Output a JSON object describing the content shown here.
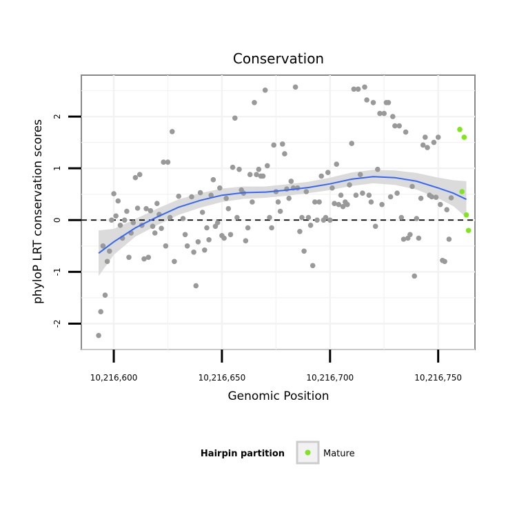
{
  "chart_data": {
    "type": "scatter",
    "title": "Conservation",
    "xlabel": "Genomic Position",
    "ylabel": "phyloP LRT conservation scores",
    "xlim": [
      10216585,
      10216767
    ],
    "ylim": [
      -2.5,
      2.8
    ],
    "x_ticks": [
      {
        "value": 10216600,
        "label": "10,216,600"
      },
      {
        "value": 10216650,
        "label": "10,216,650"
      },
      {
        "value": 10216700,
        "label": "10,216,700"
      },
      {
        "value": 10216750,
        "label": "10,216,750"
      }
    ],
    "y_ticks": [
      {
        "value": -2,
        "label": "-2"
      },
      {
        "value": -1,
        "label": "-1"
      },
      {
        "value": 0,
        "label": "0"
      },
      {
        "value": 1,
        "label": "1"
      },
      {
        "value": 2,
        "label": "2"
      }
    ],
    "grid": true,
    "reference_line": {
      "y": 0,
      "style": "dashed",
      "color": "#000000"
    },
    "colors": {
      "background_points": "#999999",
      "mature_points": "#7fe61a",
      "smooth_line": "#3366ff",
      "confidence_band": "#d9d9d9",
      "panel_border": "#888888",
      "grid": "#f2f2f2"
    },
    "legend": {
      "title": "Hairpin partition",
      "position": "bottom",
      "entries": [
        {
          "label": "Mature",
          "color": "#7fe61a"
        }
      ]
    },
    "series": [
      {
        "points": [
          [
            10216593,
            -2.23
          ],
          [
            10216594,
            -1.77
          ],
          [
            10216595,
            -0.5
          ],
          [
            10216596,
            -1.45
          ],
          [
            10216597,
            -0.8
          ],
          [
            10216598,
            -0.6
          ],
          [
            10216599,
            0.0
          ],
          [
            10216600,
            0.51
          ],
          [
            10216601,
            0.08
          ],
          [
            10216602,
            0.37
          ],
          [
            10216603,
            -0.1
          ],
          [
            10216604,
            -0.35
          ],
          [
            10216605,
            0.0
          ],
          [
            10216606,
            0.17
          ],
          [
            10216607,
            -0.72
          ],
          [
            10216608,
            -0.25
          ],
          [
            10216609,
            -0.05
          ],
          [
            10216610,
            0.82
          ],
          [
            10216611,
            0.23
          ],
          [
            10216612,
            0.88
          ],
          [
            10216613,
            -0.1
          ],
          [
            10216614,
            -0.75
          ],
          [
            10216615,
            0.22
          ],
          [
            10216616,
            -0.72
          ],
          [
            10216617,
            0.18
          ],
          [
            10216618,
            -0.12
          ],
          [
            10216619,
            -0.25
          ],
          [
            10216620,
            0.32
          ],
          [
            10216621,
            0.11
          ],
          [
            10216622,
            -0.16
          ],
          [
            10216623,
            1.12
          ],
          [
            10216624,
            -0.5
          ],
          [
            10216625,
            1.12
          ],
          [
            10216626,
            0.05
          ],
          [
            10216627,
            1.71
          ],
          [
            10216628,
            -0.8
          ],
          [
            10216630,
            0.46
          ],
          [
            10216632,
            0.03
          ],
          [
            10216633,
            -0.28
          ],
          [
            10216634,
            -0.5
          ],
          [
            10216636,
            0.45
          ],
          [
            10216637,
            -0.62
          ],
          [
            10216638,
            -1.27
          ],
          [
            10216639,
            -0.42
          ],
          [
            10216640,
            0.53
          ],
          [
            10216641,
            0.15
          ],
          [
            10216642,
            -0.58
          ],
          [
            10216643,
            -0.15
          ],
          [
            10216644,
            -0.38
          ],
          [
            10216645,
            0.48
          ],
          [
            10216646,
            0.78
          ],
          [
            10216647,
            -0.12
          ],
          [
            10216648,
            -0.05
          ],
          [
            10216649,
            0.62
          ],
          [
            10216650,
            -0.3
          ],
          [
            10216651,
            -0.35
          ],
          [
            10216652,
            0.42
          ],
          [
            10216653,
            0.22
          ],
          [
            10216654,
            -0.28
          ],
          [
            10216655,
            1.02
          ],
          [
            10216656,
            1.97
          ],
          [
            10216657,
            0.05
          ],
          [
            10216658,
            0.98
          ],
          [
            10216659,
            0.58
          ],
          [
            10216660,
            0.52
          ],
          [
            10216661,
            -0.4
          ],
          [
            10216662,
            -0.15
          ],
          [
            10216663,
            0.88
          ],
          [
            10216664,
            0.35
          ],
          [
            10216665,
            2.27
          ],
          [
            10216666,
            0.88
          ],
          [
            10216667,
            0.98
          ],
          [
            10216668,
            0.85
          ],
          [
            10216669,
            0.85
          ],
          [
            10216670,
            2.51
          ],
          [
            10216671,
            1.05
          ],
          [
            10216672,
            0.05
          ],
          [
            10216673,
            -0.15
          ],
          [
            10216674,
            1.45
          ],
          [
            10216675,
            0.55
          ],
          [
            10216676,
            0.35
          ],
          [
            10216677,
            0.17
          ],
          [
            10216678,
            1.47
          ],
          [
            10216679,
            1.28
          ],
          [
            10216680,
            0.6
          ],
          [
            10216681,
            0.42
          ],
          [
            10216682,
            0.75
          ],
          [
            10216683,
            0.62
          ],
          [
            10216684,
            2.57
          ],
          [
            10216685,
            0.62
          ],
          [
            10216686,
            -0.22
          ],
          [
            10216687,
            0.05
          ],
          [
            10216688,
            -0.6
          ],
          [
            10216689,
            0.55
          ],
          [
            10216690,
            0.05
          ],
          [
            10216691,
            -0.1
          ],
          [
            10216692,
            -0.88
          ],
          [
            10216693,
            0.35
          ],
          [
            10216694,
            0.0
          ],
          [
            10216695,
            0.35
          ],
          [
            10216696,
            0.85
          ],
          [
            10216697,
            0.0
          ],
          [
            10216698,
            0.05
          ],
          [
            10216699,
            0.92
          ],
          [
            10216700,
            0.0
          ],
          [
            10216701,
            0.62
          ],
          [
            10216702,
            0.32
          ],
          [
            10216703,
            1.08
          ],
          [
            10216704,
            0.3
          ],
          [
            10216705,
            0.48
          ],
          [
            10216706,
            0.26
          ],
          [
            10216707,
            0.35
          ],
          [
            10216708,
            0.3
          ],
          [
            10216709,
            0.68
          ],
          [
            10216710,
            1.48
          ],
          [
            10216711,
            2.53
          ],
          [
            10216712,
            0.48
          ],
          [
            10216713,
            2.53
          ],
          [
            10216714,
            0.88
          ],
          [
            10216715,
            0.52
          ],
          [
            10216716,
            2.57
          ],
          [
            10216717,
            2.32
          ],
          [
            10216718,
            0.48
          ],
          [
            10216719,
            0.35
          ],
          [
            10216720,
            2.27
          ],
          [
            10216721,
            -0.12
          ],
          [
            10216722,
            0.98
          ],
          [
            10216723,
            2.06
          ],
          [
            10216724,
            0.3
          ],
          [
            10216725,
            2.06
          ],
          [
            10216726,
            2.27
          ],
          [
            10216727,
            2.27
          ],
          [
            10216728,
            0.45
          ],
          [
            10216729,
            2.0
          ],
          [
            10216730,
            1.82
          ],
          [
            10216731,
            0.52
          ],
          [
            10216732,
            1.82
          ],
          [
            10216733,
            0.05
          ],
          [
            10216734,
            -0.37
          ],
          [
            10216735,
            1.7
          ],
          [
            10216736,
            -0.35
          ],
          [
            10216737,
            -0.28
          ],
          [
            10216738,
            0.65
          ],
          [
            10216739,
            -1.08
          ],
          [
            10216740,
            0.03
          ],
          [
            10216741,
            -0.35
          ],
          [
            10216742,
            0.42
          ],
          [
            10216743,
            1.45
          ],
          [
            10216744,
            1.6
          ],
          [
            10216745,
            1.4
          ],
          [
            10216746,
            0.48
          ],
          [
            10216747,
            0.45
          ],
          [
            10216748,
            1.5
          ],
          [
            10216749,
            0.44
          ],
          [
            10216750,
            1.6
          ],
          [
            10216751,
            0.3
          ],
          [
            10216752,
            -0.78
          ],
          [
            10216753,
            -0.8
          ],
          [
            10216754,
            0.2
          ],
          [
            10216755,
            -0.37
          ],
          [
            10216756,
            0.43
          ]
        ]
      },
      {
        "name": "Mature",
        "points": [
          [
            10216760,
            1.75
          ],
          [
            10216761,
            0.55
          ],
          [
            10216762,
            1.6
          ],
          [
            10216763,
            0.1
          ],
          [
            10216764,
            -0.2
          ]
        ]
      }
    ],
    "smooth": {
      "x": [
        10216593,
        10216600,
        10216610,
        10216620,
        10216630,
        10216640,
        10216650,
        10216660,
        10216670,
        10216680,
        10216690,
        10216700,
        10216710,
        10216720,
        10216730,
        10216740,
        10216750,
        10216757,
        10216763
      ],
      "y": [
        -0.64,
        -0.42,
        -0.15,
        0.06,
        0.25,
        0.38,
        0.48,
        0.53,
        0.54,
        0.58,
        0.63,
        0.7,
        0.79,
        0.84,
        0.82,
        0.75,
        0.62,
        0.52,
        0.4
      ],
      "lower": [
        -1.08,
        -0.67,
        -0.32,
        -0.1,
        0.1,
        0.24,
        0.35,
        0.41,
        0.43,
        0.47,
        0.52,
        0.58,
        0.66,
        0.71,
        0.68,
        0.59,
        0.42,
        0.27,
        0.05
      ],
      "upper": [
        -0.2,
        -0.17,
        0.02,
        0.22,
        0.4,
        0.52,
        0.61,
        0.65,
        0.65,
        0.69,
        0.74,
        0.82,
        0.92,
        0.97,
        0.96,
        0.91,
        0.82,
        0.77,
        0.75
      ]
    }
  }
}
